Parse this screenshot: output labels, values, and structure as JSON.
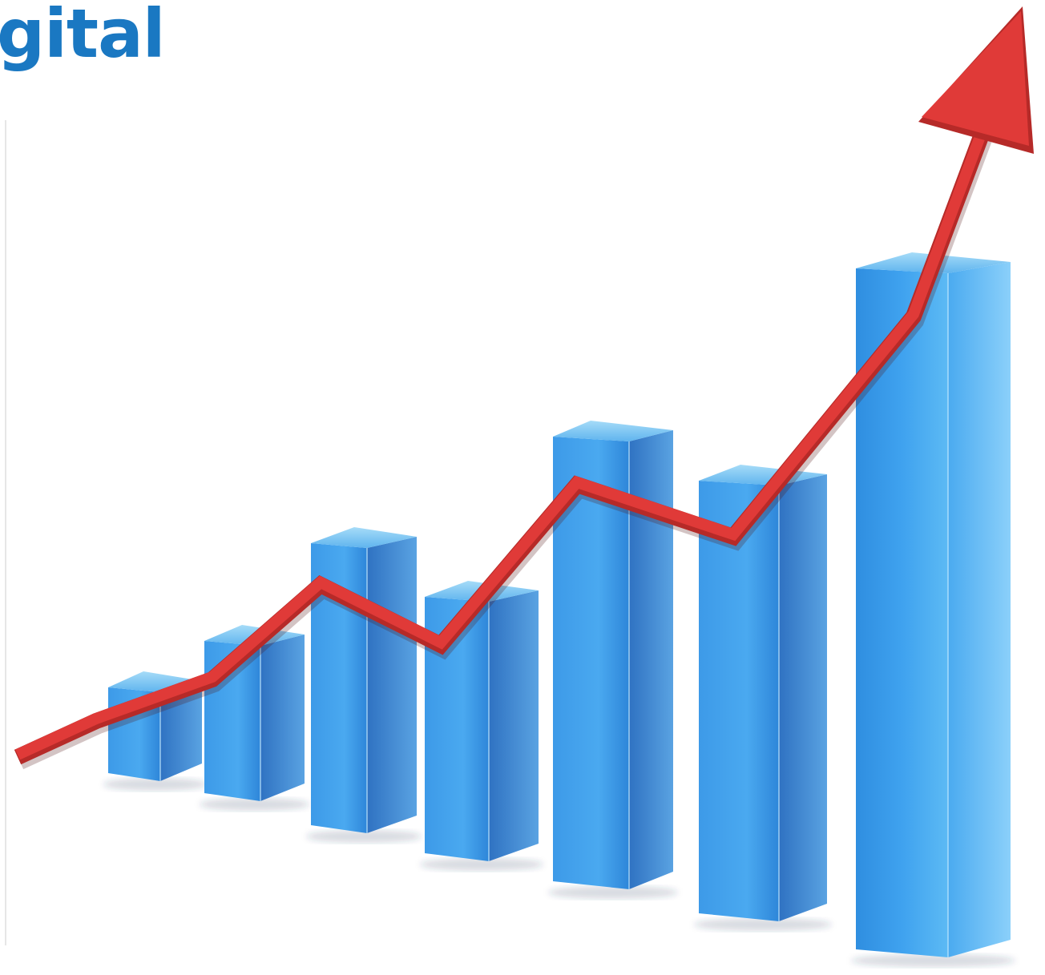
{
  "heading": {
    "text": "gital"
  },
  "colors": {
    "heading": "#1a78c2",
    "bar_top": "#79c3f0",
    "bar_front_light": "#4ba6ee",
    "bar_front_dark": "#2a83db",
    "bar_side_light": "#5aa2e0",
    "bar_side_dark": "#2b6ab8",
    "arrow": "#e03a38",
    "arrow_shade": "#b62a28"
  },
  "illustration": {
    "icon": "growth-bar-chart-with-up-arrow-icon",
    "bar_count": 7,
    "bars": [
      {
        "level": 0.1
      },
      {
        "level": 0.19
      },
      {
        "level": 0.33
      },
      {
        "level": 0.33
      },
      {
        "level": 0.55
      },
      {
        "level": 0.52
      },
      {
        "level": 0.82
      }
    ]
  }
}
